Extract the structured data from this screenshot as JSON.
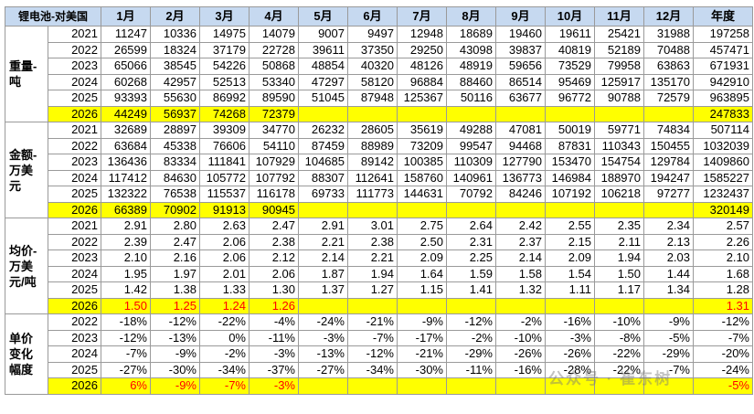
{
  "table": {
    "header": [
      "锂电池-对美国",
      "1月",
      "2月",
      "3月",
      "4月",
      "5月",
      "6月",
      "7月",
      "8月",
      "9月",
      "10月",
      "11月",
      "12月",
      "年度"
    ],
    "sections": [
      {
        "label": "重量-吨",
        "rows": [
          {
            "year": "2021",
            "months": [
              "11247",
              "10336",
              "14975",
              "14079",
              "9007",
              "9497",
              "12948",
              "18689",
              "19460",
              "19611",
              "25421",
              "31988"
            ],
            "annual": "197258"
          },
          {
            "year": "2022",
            "months": [
              "26599",
              "18324",
              "37179",
              "22728",
              "39611",
              "37350",
              "29250",
              "43098",
              "39837",
              "40819",
              "52189",
              "70488"
            ],
            "annual": "457471"
          },
          {
            "year": "2023",
            "months": [
              "65066",
              "38545",
              "54226",
              "50868",
              "48854",
              "40320",
              "48126",
              "48919",
              "59656",
              "73529",
              "79958",
              "63863"
            ],
            "annual": "671931"
          },
          {
            "year": "2024",
            "months": [
              "60268",
              "42957",
              "52513",
              "53340",
              "47297",
              "58120",
              "96884",
              "88460",
              "86514",
              "95469",
              "125917",
              "135170"
            ],
            "annual": "942910"
          },
          {
            "year": "2025",
            "months": [
              "93393",
              "55630",
              "86992",
              "89590",
              "51045",
              "87948",
              "125367",
              "50116",
              "63677",
              "96772",
              "90788",
              "72579"
            ],
            "annual": "963895"
          },
          {
            "year": "2026",
            "months": [
              "44249",
              "56937",
              "74268",
              "72379"
            ],
            "annual": "247833"
          }
        ]
      },
      {
        "label": "金额-万美元",
        "rows": [
          {
            "year": "2021",
            "months": [
              "32689",
              "28897",
              "39309",
              "34770",
              "26232",
              "28605",
              "35619",
              "49288",
              "47081",
              "50019",
              "59771",
              "74834"
            ],
            "annual": "507114"
          },
          {
            "year": "2022",
            "months": [
              "63684",
              "45338",
              "76606",
              "54110",
              "87459",
              "88989",
              "73209",
              "99547",
              "94468",
              "87831",
              "110343",
              "150455"
            ],
            "annual": "1032039"
          },
          {
            "year": "2023",
            "months": [
              "136436",
              "83334",
              "111841",
              "107929",
              "104685",
              "89142",
              "100385",
              "110309",
              "127790",
              "153470",
              "154754",
              "129784"
            ],
            "annual": "1409860"
          },
          {
            "year": "2024",
            "months": [
              "117412",
              "84630",
              "105772",
              "107792",
              "88307",
              "112641",
              "158760",
              "140961",
              "136773",
              "146984",
              "188970",
              "194247"
            ],
            "annual": "1585227"
          },
          {
            "year": "2025",
            "months": [
              "132322",
              "76538",
              "115537",
              "116178",
              "69733",
              "111773",
              "144631",
              "70792",
              "84246",
              "107192",
              "106218",
              "97277"
            ],
            "annual": "1232437"
          },
          {
            "year": "2026",
            "months": [
              "66389",
              "70902",
              "91913",
              "90945"
            ],
            "annual": "320149"
          }
        ]
      },
      {
        "label": "均价-万美元/吨",
        "rows": [
          {
            "year": "2021",
            "months": [
              "2.91",
              "2.80",
              "2.63",
              "2.47",
              "2.91",
              "3.01",
              "2.75",
              "2.64",
              "2.42",
              "2.55",
              "2.35",
              "2.34"
            ],
            "annual": "2.57"
          },
          {
            "year": "2022",
            "months": [
              "2.39",
              "2.47",
              "2.06",
              "2.38",
              "2.21",
              "2.38",
              "2.50",
              "2.31",
              "2.37",
              "2.15",
              "2.11",
              "2.13"
            ],
            "annual": "2.26"
          },
          {
            "year": "2023",
            "months": [
              "2.10",
              "2.16",
              "2.06",
              "2.12",
              "2.14",
              "2.21",
              "2.09",
              "2.25",
              "2.14",
              "2.09",
              "1.94",
              "2.03"
            ],
            "annual": "2.10"
          },
          {
            "year": "2024",
            "months": [
              "1.95",
              "1.97",
              "2.01",
              "2.06",
              "1.87",
              "1.94",
              "1.64",
              "1.59",
              "1.58",
              "1.54",
              "1.50",
              "1.44"
            ],
            "annual": "1.68"
          },
          {
            "year": "2025",
            "months": [
              "1.42",
              "1.38",
              "1.33",
              "1.30",
              "1.37",
              "1.27",
              "1.15",
              "1.41",
              "1.32",
              "1.11",
              "1.17",
              "1.34"
            ],
            "annual": "1.28"
          },
          {
            "year": "2026",
            "months": [
              "1.50",
              "1.25",
              "1.24",
              "1.26"
            ],
            "annual": "1.31"
          }
        ]
      },
      {
        "label": "单价变化幅度",
        "rows": [
          {
            "year": "2022",
            "months": [
              "-18%",
              "-12%",
              "-22%",
              "-4%",
              "-24%",
              "-21%",
              "-9%",
              "-12%",
              "-2%",
              "-16%",
              "-10%",
              "-9%"
            ],
            "annual": "-12%"
          },
          {
            "year": "2023",
            "months": [
              "-12%",
              "-13%",
              "0%",
              "-11%",
              "-3%",
              "-7%",
              "-17%",
              "-2%",
              "-10%",
              "-3%",
              "-8%",
              "-5%"
            ],
            "annual": "-7%"
          },
          {
            "year": "2024",
            "months": [
              "-7%",
              "-9%",
              "-2%",
              "-3%",
              "-13%",
              "-12%",
              "-21%",
              "-29%",
              "-26%",
              "-26%",
              "-22%",
              "-29%"
            ],
            "annual": "-20%"
          },
          {
            "year": "2025",
            "months": [
              "-27%",
              "-30%",
              "-34%",
              "-37%",
              "-27%",
              "-34%",
              "-30%",
              "-11%",
              "-16%",
              "-28%",
              "-22%",
              "-7%"
            ],
            "annual": "-24%"
          },
          {
            "year": "2026",
            "months": [
              "6%",
              "-9%",
              "-7%",
              "-3%"
            ],
            "annual": "-5%"
          }
        ]
      }
    ],
    "watermark": "公众号 · 崔东树"
  }
}
